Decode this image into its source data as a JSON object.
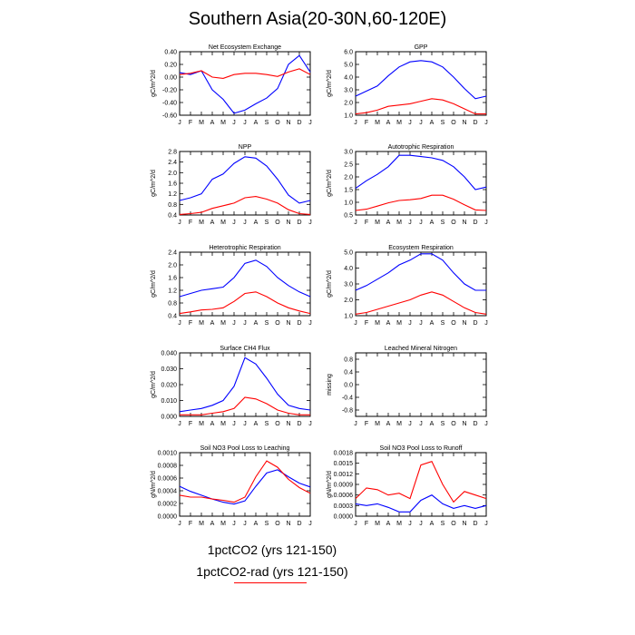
{
  "title": "Southern Asia(20-30N,60-120E)",
  "legend": {
    "series1": "1pctCO2 (yrs 121-150)",
    "series2": "1pctCO2-rad (yrs 121-150)"
  },
  "colors": {
    "series1": "#0000ff",
    "series2": "#ff0000"
  },
  "months": [
    "J",
    "F",
    "M",
    "A",
    "M",
    "J",
    "J",
    "A",
    "S",
    "O",
    "N",
    "D",
    "J"
  ],
  "chart_data": [
    {
      "type": "line",
      "title": "Net Ecosystem Exchange",
      "ylabel": "gC/m^2/d",
      "ylim": [
        -0.6,
        0.4
      ],
      "yticks": [
        "-0.60",
        "-0.40",
        "-0.20",
        "0.00",
        "0.20",
        "0.40"
      ],
      "yticks_val": [
        -0.6,
        -0.4,
        -0.2,
        0.0,
        0.2,
        0.4
      ],
      "series": [
        {
          "values": [
            0.07,
            0.04,
            0.1,
            -0.2,
            -0.35,
            -0.57,
            -0.52,
            -0.42,
            -0.33,
            -0.18,
            0.2,
            0.34,
            0.08
          ]
        },
        {
          "values": [
            0.04,
            0.06,
            0.1,
            0.0,
            -0.02,
            0.04,
            0.06,
            0.06,
            0.04,
            0.01,
            0.08,
            0.13,
            0.04
          ]
        }
      ]
    },
    {
      "type": "line",
      "title": "GPP",
      "ylabel": "gC/m^2/d",
      "ylim": [
        1.0,
        6.0
      ],
      "yticks": [
        "1.0",
        "2.0",
        "3.0",
        "4.0",
        "5.0",
        "6.0"
      ],
      "yticks_val": [
        1,
        2,
        3,
        4,
        5,
        6
      ],
      "series": [
        {
          "values": [
            2.5,
            2.9,
            3.3,
            4.1,
            4.8,
            5.2,
            5.3,
            5.2,
            4.8,
            4.0,
            3.1,
            2.3,
            2.5
          ]
        },
        {
          "values": [
            1.1,
            1.2,
            1.4,
            1.7,
            1.8,
            1.9,
            2.1,
            2.3,
            2.2,
            1.9,
            1.5,
            1.1,
            1.1
          ]
        }
      ]
    },
    {
      "type": "line",
      "title": "NPP",
      "ylabel": "gC/m^2/d",
      "ylim": [
        0.4,
        2.8
      ],
      "yticks": [
        "0.4",
        "0.8",
        "1.2",
        "1.6",
        "2.0",
        "2.4",
        "2.8"
      ],
      "yticks_val": [
        0.4,
        0.8,
        1.2,
        1.6,
        2.0,
        2.4,
        2.8
      ],
      "series": [
        {
          "values": [
            0.95,
            1.05,
            1.2,
            1.75,
            1.95,
            2.35,
            2.6,
            2.55,
            2.25,
            1.75,
            1.15,
            0.85,
            0.95
          ]
        },
        {
          "values": [
            0.42,
            0.45,
            0.5,
            0.65,
            0.75,
            0.85,
            1.05,
            1.1,
            1.0,
            0.85,
            0.6,
            0.45,
            0.42
          ]
        }
      ]
    },
    {
      "type": "line",
      "title": "Autotrophic Respiration",
      "ylabel": "gC/m^2/d",
      "ylim": [
        0.5,
        3.0
      ],
      "yticks": [
        "0.5",
        "1.0",
        "1.5",
        "2.0",
        "2.5",
        "3.0"
      ],
      "yticks_val": [
        0.5,
        1.0,
        1.5,
        2.0,
        2.5,
        3.0
      ],
      "series": [
        {
          "values": [
            1.55,
            1.85,
            2.1,
            2.4,
            2.85,
            2.85,
            2.8,
            2.75,
            2.65,
            2.4,
            2.0,
            1.5,
            1.6
          ]
        },
        {
          "values": [
            0.68,
            0.73,
            0.85,
            0.98,
            1.07,
            1.1,
            1.15,
            1.28,
            1.28,
            1.12,
            0.9,
            0.7,
            0.68
          ]
        }
      ]
    },
    {
      "type": "line",
      "title": "Heterotrophic Respiration",
      "ylabel": "gC/m^2/d",
      "ylim": [
        0.4,
        2.4
      ],
      "yticks": [
        "0.4",
        "0.8",
        "1.2",
        "1.6",
        "2.0",
        "2.4"
      ],
      "yticks_val": [
        0.4,
        0.8,
        1.2,
        1.6,
        2.0,
        2.4
      ],
      "series": [
        {
          "values": [
            1.0,
            1.1,
            1.2,
            1.25,
            1.3,
            1.6,
            2.05,
            2.15,
            1.95,
            1.6,
            1.35,
            1.15,
            1.0
          ]
        },
        {
          "values": [
            0.47,
            0.52,
            0.58,
            0.6,
            0.65,
            0.85,
            1.1,
            1.15,
            1.0,
            0.8,
            0.65,
            0.55,
            0.47
          ]
        }
      ]
    },
    {
      "type": "line",
      "title": "Ecosystem Respiration",
      "ylabel": "gC/m^2/d",
      "ylim": [
        1.0,
        5.0
      ],
      "yticks": [
        "1.0",
        "2.0",
        "3.0",
        "4.0",
        "5.0"
      ],
      "yticks_val": [
        1,
        2,
        3,
        4,
        5
      ],
      "series": [
        {
          "values": [
            2.6,
            2.9,
            3.3,
            3.7,
            4.2,
            4.5,
            4.9,
            4.9,
            4.5,
            3.7,
            3.0,
            2.6,
            2.6
          ]
        },
        {
          "values": [
            1.1,
            1.2,
            1.4,
            1.6,
            1.8,
            2.0,
            2.3,
            2.5,
            2.3,
            1.9,
            1.5,
            1.2,
            1.1
          ]
        }
      ]
    },
    {
      "type": "line",
      "title": "Surface CH4 Flux",
      "ylabel": "gC/m^2/d",
      "ylim": [
        0.0,
        0.04
      ],
      "yticks": [
        "0.000",
        "0.010",
        "0.020",
        "0.030",
        "0.040"
      ],
      "yticks_val": [
        0.0,
        0.01,
        0.02,
        0.03,
        0.04
      ],
      "series": [
        {
          "values": [
            0.003,
            0.004,
            0.005,
            0.007,
            0.01,
            0.019,
            0.037,
            0.033,
            0.024,
            0.014,
            0.007,
            0.005,
            0.004
          ]
        },
        {
          "values": [
            0.001,
            0.001,
            0.001,
            0.002,
            0.003,
            0.005,
            0.012,
            0.011,
            0.008,
            0.004,
            0.002,
            0.001,
            0.001
          ]
        }
      ]
    },
    {
      "type": "line",
      "title": "Leached Mineral Nitrogen",
      "ylabel": "missing",
      "ylim": [
        -1.0,
        1.0
      ],
      "yticks": [
        "-0.8",
        "-0.4",
        "0.0",
        "0.4",
        "0.8"
      ],
      "yticks_val": [
        -0.8,
        -0.4,
        0.0,
        0.4,
        0.8
      ],
      "series": []
    },
    {
      "type": "line",
      "title": "Soil NO3 Pool Loss to Leaching",
      "ylabel": "gN/m^2/d",
      "ylim": [
        0.0,
        0.001
      ],
      "yticks": [
        "0.0000",
        "0.0002",
        "0.0004",
        "0.0006",
        "0.0008",
        "0.0010"
      ],
      "yticks_val": [
        0.0,
        0.0002,
        0.0004,
        0.0006,
        0.0008,
        0.001
      ],
      "series": [
        {
          "values": [
            0.00047,
            0.00039,
            0.00033,
            0.00027,
            0.00022,
            0.00019,
            0.00024,
            0.00047,
            0.00068,
            0.00073,
            0.00062,
            0.00052,
            0.00046
          ]
        },
        {
          "values": [
            0.00033,
            0.0003,
            0.0003,
            0.00027,
            0.00025,
            0.00022,
            0.0003,
            0.00062,
            0.00087,
            0.00077,
            0.00058,
            0.00045,
            0.00036
          ]
        }
      ]
    },
    {
      "type": "line",
      "title": "Soil NO3 Pool Loss to Runoff",
      "ylabel": "gN/m^2/d",
      "ylim": [
        0.0,
        0.0018
      ],
      "yticks": [
        "0.0000",
        "0.0003",
        "0.0006",
        "0.0009",
        "0.0012",
        "0.0015",
        "0.0018"
      ],
      "yticks_val": [
        0.0,
        0.0003,
        0.0006,
        0.0009,
        0.0012,
        0.0015,
        0.0018
      ],
      "series": [
        {
          "values": [
            0.00035,
            0.0003,
            0.00035,
            0.00025,
            0.00012,
            0.00012,
            0.00045,
            0.0006,
            0.00035,
            0.00022,
            0.0003,
            0.00022,
            0.0003
          ]
        },
        {
          "values": [
            0.0005,
            0.0008,
            0.00075,
            0.0006,
            0.00065,
            0.0005,
            0.00145,
            0.00155,
            0.0009,
            0.0004,
            0.0007,
            0.0006,
            0.0005
          ]
        }
      ]
    }
  ]
}
